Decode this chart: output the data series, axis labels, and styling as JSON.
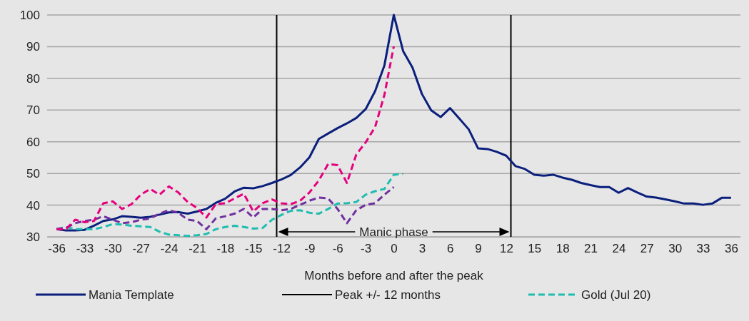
{
  "chart_data": {
    "type": "line",
    "xlabel": "Months before and after the peak",
    "x": [
      -36,
      -35,
      -34,
      -33,
      -32,
      -31,
      -30,
      -29,
      -28,
      -27,
      -26,
      -25,
      -24,
      -23,
      -22,
      -21,
      -20,
      -19,
      -18,
      -17,
      -16,
      -15,
      -14,
      -13,
      -12,
      -11,
      -10,
      -9,
      -8,
      -7,
      -6,
      -5,
      -4,
      -3,
      -2,
      -1,
      0,
      1,
      2,
      3,
      4,
      5,
      6,
      7,
      8,
      9,
      10,
      11,
      12,
      13,
      14,
      15,
      16,
      17,
      18,
      19,
      20,
      21,
      22,
      23,
      24,
      25,
      26,
      27,
      28,
      29,
      30,
      31,
      32,
      33,
      34,
      35,
      36
    ],
    "series": [
      {
        "name": "Mania Template",
        "color": "#0b1f7c",
        "line_style": "solid",
        "values": [
          32.4,
          32,
          32,
          32.2,
          33.5,
          35,
          35.5,
          36.5,
          36.3,
          36,
          36.3,
          37,
          37.7,
          37.8,
          37.3,
          38,
          38.8,
          40.7,
          42,
          44.3,
          45.5,
          45.3,
          46,
          47,
          48.1,
          49.5,
          51.9,
          55.1,
          60.9,
          62.6,
          64.3,
          65.8,
          67.5,
          70.3,
          75.9,
          84.1,
          100,
          88.6,
          83.4,
          75.1,
          69.9,
          67.8,
          70.6,
          67.3,
          63.9,
          57.9,
          57.7,
          56.8,
          55.6,
          52.3,
          51.4,
          49.6,
          49.3,
          49.6,
          48.7,
          48,
          47,
          46.3,
          45.7,
          45.7,
          43.9,
          45.4,
          44,
          42.7,
          42.4,
          41.8,
          41.2,
          40.5,
          40.5,
          40.1,
          40.5,
          42.3,
          42.3
        ]
      },
      {
        "name": "Gold (Jul 20)",
        "color": "#1fbdb0",
        "line_style": "dashed",
        "x": [
          -36,
          -35,
          -34,
          -33,
          -32,
          -31,
          -30,
          -29,
          -28,
          -27,
          -26,
          -25,
          -24,
          -23,
          -22,
          -21,
          -20,
          -19,
          -18,
          -17,
          -16,
          -15,
          -14,
          -13,
          -12,
          -11,
          -10,
          -9,
          -8,
          -7,
          -6,
          -5,
          -4,
          -3,
          -2,
          -1,
          0,
          1
        ],
        "values": [
          32.5,
          33.1,
          32.4,
          32.4,
          32.4,
          33.1,
          34,
          33.9,
          33.5,
          33.3,
          33.1,
          31.6,
          30.7,
          30.5,
          30.3,
          30.5,
          30.9,
          32.4,
          33.1,
          33.5,
          33.1,
          32.6,
          32.8,
          35.4,
          36.9,
          38.2,
          38.4,
          37.6,
          37.3,
          38.8,
          40.5,
          40.6,
          41,
          43.3,
          44.4,
          45.1,
          49.6,
          49.9
        ]
      },
      {
        "color": "#7030a0",
        "line_style": "dashed",
        "x": [
          -36,
          -35,
          -34,
          -33,
          -32,
          -31,
          -30,
          -29,
          -28,
          -27,
          -26,
          -25,
          -24,
          -23,
          -22,
          -21,
          -20,
          -19,
          -18,
          -17,
          -16,
          -15,
          -14,
          -13,
          -12,
          -11,
          -10,
          -9,
          -8,
          -7,
          -6,
          -5,
          -4,
          -3,
          -2,
          -1,
          0
        ],
        "values": [
          32.4,
          32.8,
          34.3,
          35,
          35.4,
          36.5,
          35.4,
          34.3,
          34.6,
          35.4,
          35.8,
          37.3,
          38.4,
          37.6,
          35.4,
          35,
          32.4,
          35.8,
          36.5,
          37.3,
          38.8,
          36.1,
          38.8,
          38.8,
          38.4,
          38.8,
          40.1,
          41.4,
          42.4,
          42.1,
          38.8,
          34.3,
          38.4,
          40.1,
          40.6,
          43.3,
          45.7
        ]
      },
      {
        "color": "#e6007e",
        "line_style": "dashed",
        "x": [
          -36,
          -35,
          -34,
          -33,
          -32,
          -31,
          -30,
          -29,
          -28,
          -27,
          -26,
          -25,
          -24,
          -23,
          -22,
          -21,
          -20,
          -19,
          -18,
          -17,
          -16,
          -15,
          -14,
          -13,
          -12,
          -11,
          -10,
          -9,
          -8,
          -7,
          -6,
          -5,
          -4,
          -3,
          -2,
          -1,
          0
        ],
        "values": [
          32.4,
          32.4,
          35.4,
          34.6,
          35,
          40.6,
          41.2,
          38.8,
          40.3,
          43.3,
          45.1,
          43.3,
          45.9,
          44,
          41,
          39.1,
          36.1,
          40.3,
          40.6,
          42.1,
          43.6,
          38,
          40.6,
          41.8,
          40.6,
          40.3,
          41.4,
          44,
          47.8,
          53,
          52.6,
          47,
          56,
          59.8,
          64.6,
          74.8,
          90.1
        ]
      }
    ],
    "ref_lines": [
      {
        "axis": "x",
        "value": -12.5,
        "label": "Peak +/- 12 months",
        "color": "#000000"
      },
      {
        "axis": "x",
        "value": 12.5,
        "color": "#000000"
      }
    ],
    "annotations": [
      "Manic phase"
    ],
    "xlim": [
      -37,
      37
    ],
    "xticks": [
      -36,
      -33,
      -30,
      -27,
      -24,
      -21,
      -18,
      -15,
      -12,
      -9,
      -6,
      -3,
      0,
      3,
      6,
      9,
      12,
      15,
      18,
      21,
      24,
      27,
      30,
      33,
      36
    ],
    "ylim": [
      30,
      100
    ],
    "yticks": [
      30,
      40,
      50,
      60,
      70,
      80,
      90,
      100
    ],
    "grid": "y",
    "legend": "bottom",
    "marker": "none"
  }
}
